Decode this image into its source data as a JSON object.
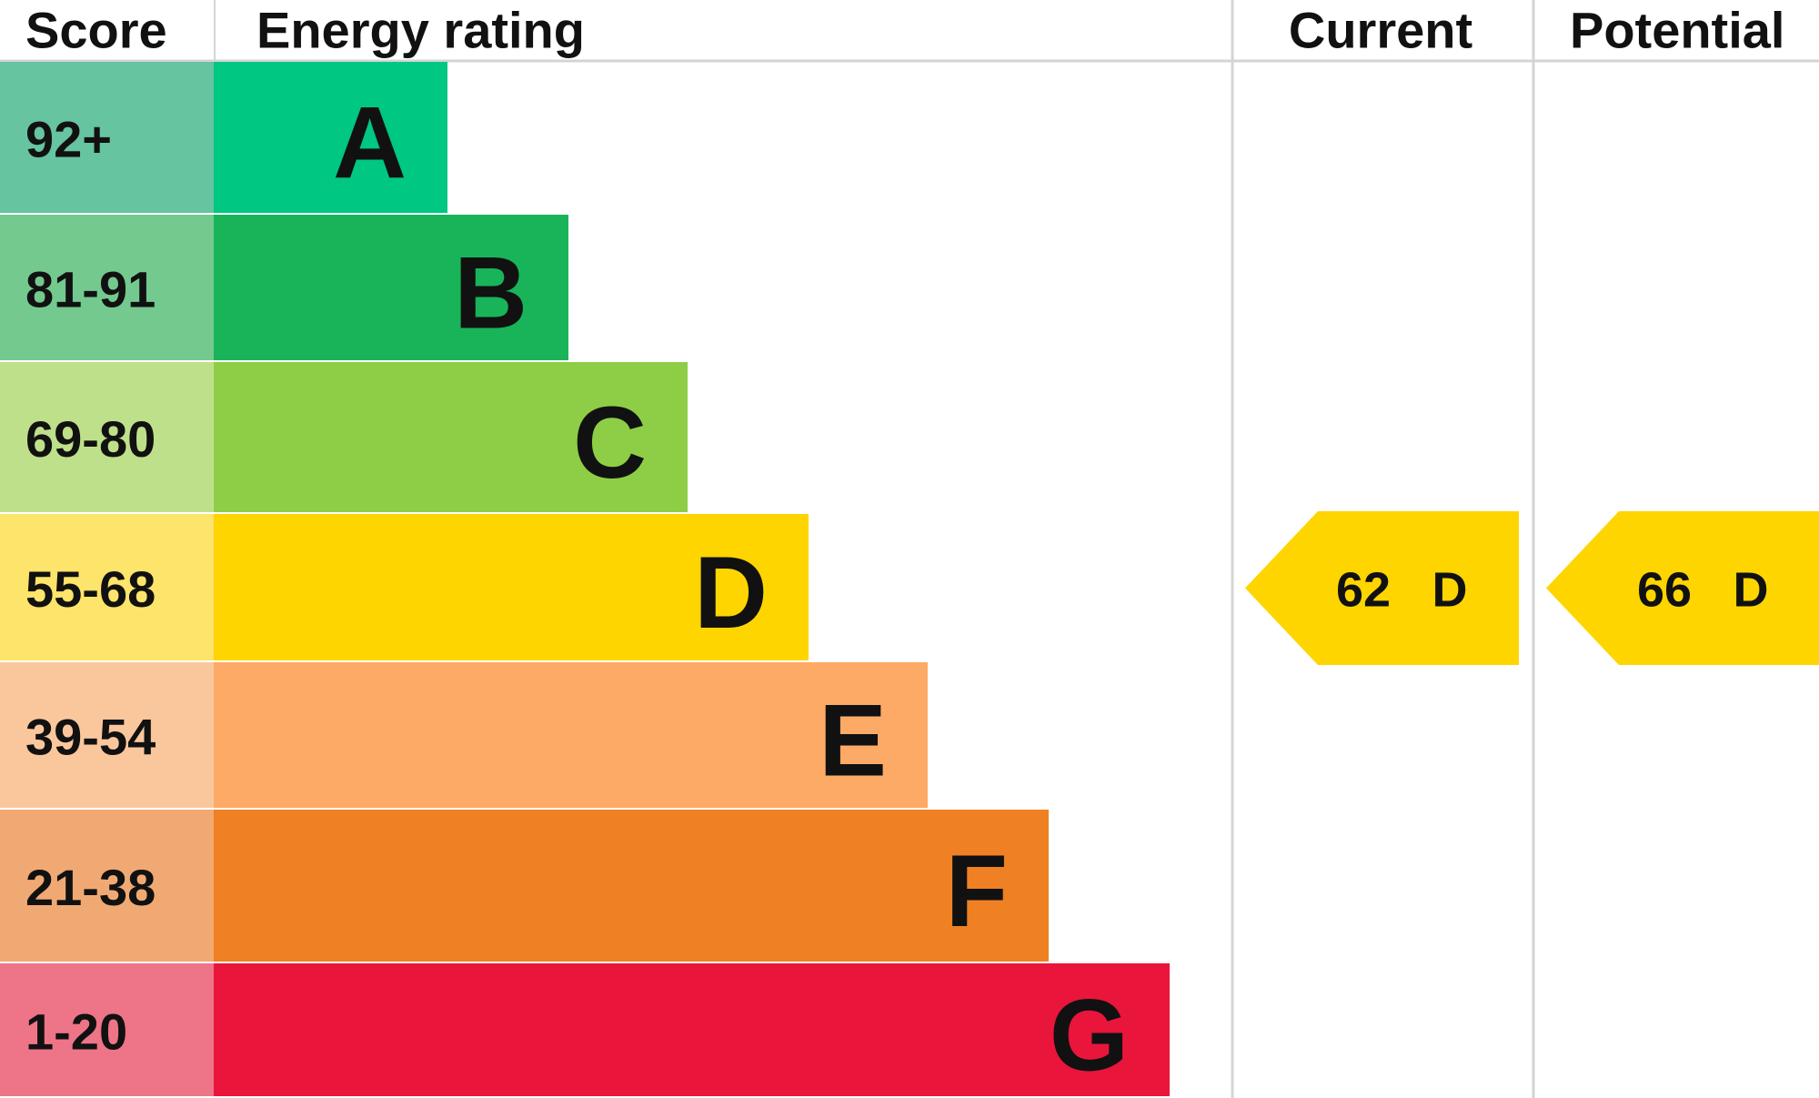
{
  "header": {
    "score": "Score",
    "rating": "Energy rating",
    "current": "Current",
    "potential": "Potential"
  },
  "bands": [
    {
      "score": "92+",
      "letter": "A"
    },
    {
      "score": "81-91",
      "letter": "B"
    },
    {
      "score": "69-80",
      "letter": "C"
    },
    {
      "score": "55-68",
      "letter": "D"
    },
    {
      "score": "39-54",
      "letter": "E"
    },
    {
      "score": "21-38",
      "letter": "F"
    },
    {
      "score": "1-20",
      "letter": "G"
    }
  ],
  "current": {
    "value": "62",
    "letter": "D"
  },
  "potential": {
    "value": "66",
    "letter": "D"
  }
}
